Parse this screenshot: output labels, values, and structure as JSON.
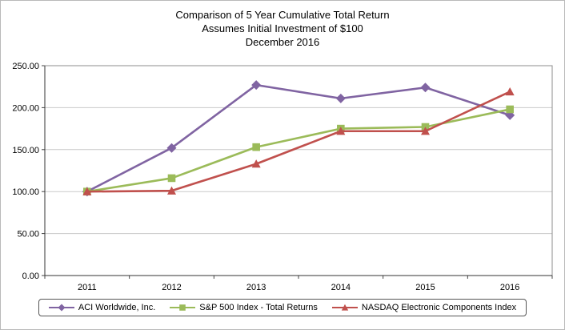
{
  "title": {
    "line1": "Comparison of 5 Year Cumulative Total Return",
    "line2": "Assumes Initial Investment of $100",
    "line3": "December 2016"
  },
  "chart_data": {
    "type": "line",
    "title": "Comparison of 5 Year Cumulative Total Return",
    "subtitle": "Assumes Initial Investment of $100",
    "date_label": "December 2016",
    "categories": [
      "2011",
      "2012",
      "2013",
      "2014",
      "2015",
      "2016"
    ],
    "series": [
      {
        "name": "ACI Worldwide, Inc.",
        "color": "#8064A2",
        "marker": "diamond",
        "values": [
          100.0,
          152.0,
          227.0,
          211.0,
          224.0,
          191.0
        ]
      },
      {
        "name": "S&P 500 Index - Total Returns",
        "color": "#9BBB59",
        "marker": "square",
        "values": [
          100.0,
          116.0,
          153.0,
          175.0,
          177.0,
          198.0
        ]
      },
      {
        "name": "NASDAQ Electronic Components Index",
        "color": "#C0504D",
        "marker": "triangle",
        "values": [
          100.0,
          101.0,
          133.0,
          172.0,
          172.0,
          219.0
        ]
      }
    ],
    "ylim": [
      0,
      250
    ],
    "ytick_step": 50,
    "ytick_format": "two_decimals",
    "grid": true,
    "legend_position": "bottom"
  }
}
